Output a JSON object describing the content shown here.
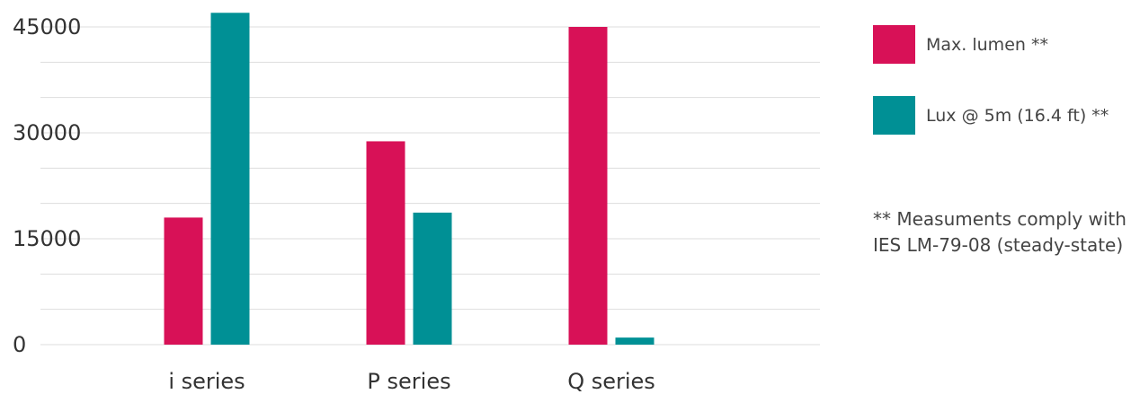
{
  "chart_data": {
    "type": "bar",
    "categories": [
      "i series",
      "P series",
      "Q series"
    ],
    "series": [
      {
        "name": "Max. lumen **",
        "color": "#d81157",
        "values": [
          18000,
          28800,
          45000
        ]
      },
      {
        "name": "Lux @ 5m (16.4 ft) **",
        "color": "#009095",
        "values": [
          47000,
          18700,
          1000
        ]
      }
    ],
    "y_ticks": [
      "45000",
      "30000",
      "15000",
      "0"
    ],
    "ylim": [
      0,
      47000
    ],
    "grid": true,
    "legend_position": "right",
    "note": "** Measuments comply with IES LM-79-08 (steady-state)"
  }
}
